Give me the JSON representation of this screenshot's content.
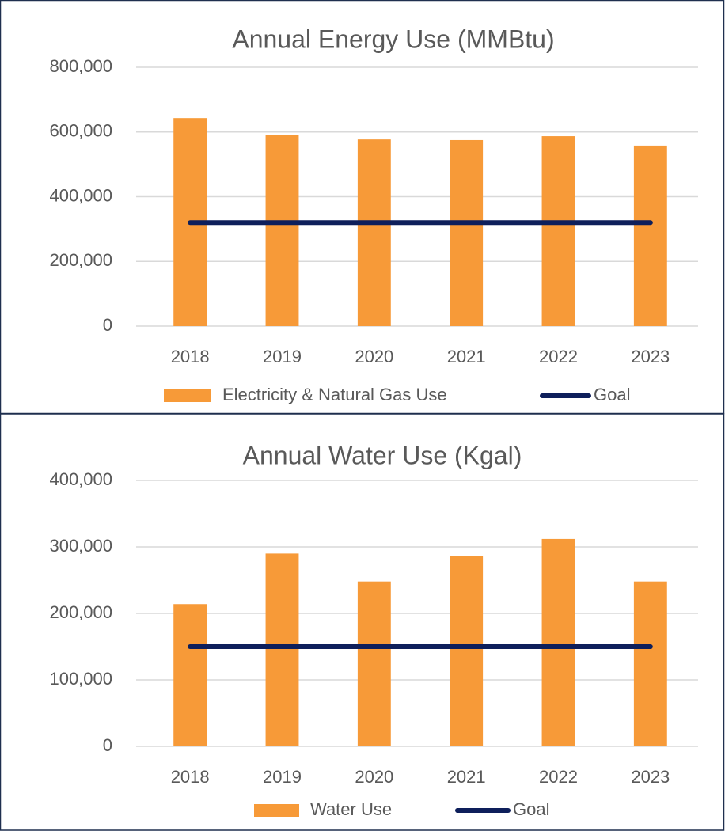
{
  "chart_data": [
    {
      "type": "bar",
      "title": "Annual Energy Use (MMBtu)",
      "categories": [
        "2018",
        "2019",
        "2020",
        "2021",
        "2022",
        "2023"
      ],
      "series": [
        {
          "name": "Electricity & Natural Gas Use",
          "type": "bar",
          "color": "#f79a38",
          "values": [
            643000,
            590000,
            577000,
            575000,
            587000,
            558000
          ]
        },
        {
          "name": "Goal",
          "type": "line",
          "color": "#0e1f5b",
          "values": [
            320000,
            320000,
            320000,
            320000,
            320000,
            320000
          ]
        }
      ],
      "ylim": [
        0,
        800000
      ],
      "yticks": [
        0,
        {
          "value": 200000,
          "label": "200,000"
        },
        {
          "value": 400000,
          "label": "400,000"
        },
        {
          "value": 600000,
          "label": "600,000"
        },
        {
          "value": 800000,
          "label": "800,000"
        }
      ],
      "grid": true,
      "legend": "bottom"
    },
    {
      "type": "bar",
      "title": "Annual Water Use (Kgal)",
      "categories": [
        "2018",
        "2019",
        "2020",
        "2021",
        "2022",
        "2023"
      ],
      "series": [
        {
          "name": "Water Use",
          "type": "bar",
          "color": "#f79a38",
          "values": [
            214000,
            290000,
            248000,
            286000,
            312000,
            248000
          ]
        },
        {
          "name": "Goal",
          "type": "line",
          "color": "#0e1f5b",
          "values": [
            150000,
            150000,
            150000,
            150000,
            150000,
            150000
          ]
        }
      ],
      "ylim": [
        0,
        400000
      ],
      "yticks": [
        0,
        {
          "value": 100000,
          "label": "100,000"
        },
        {
          "value": 200000,
          "label": "200,000"
        },
        {
          "value": 300000,
          "label": "300,000"
        },
        {
          "value": 400000,
          "label": "400,000"
        }
      ],
      "grid": true,
      "legend": "bottom"
    }
  ]
}
